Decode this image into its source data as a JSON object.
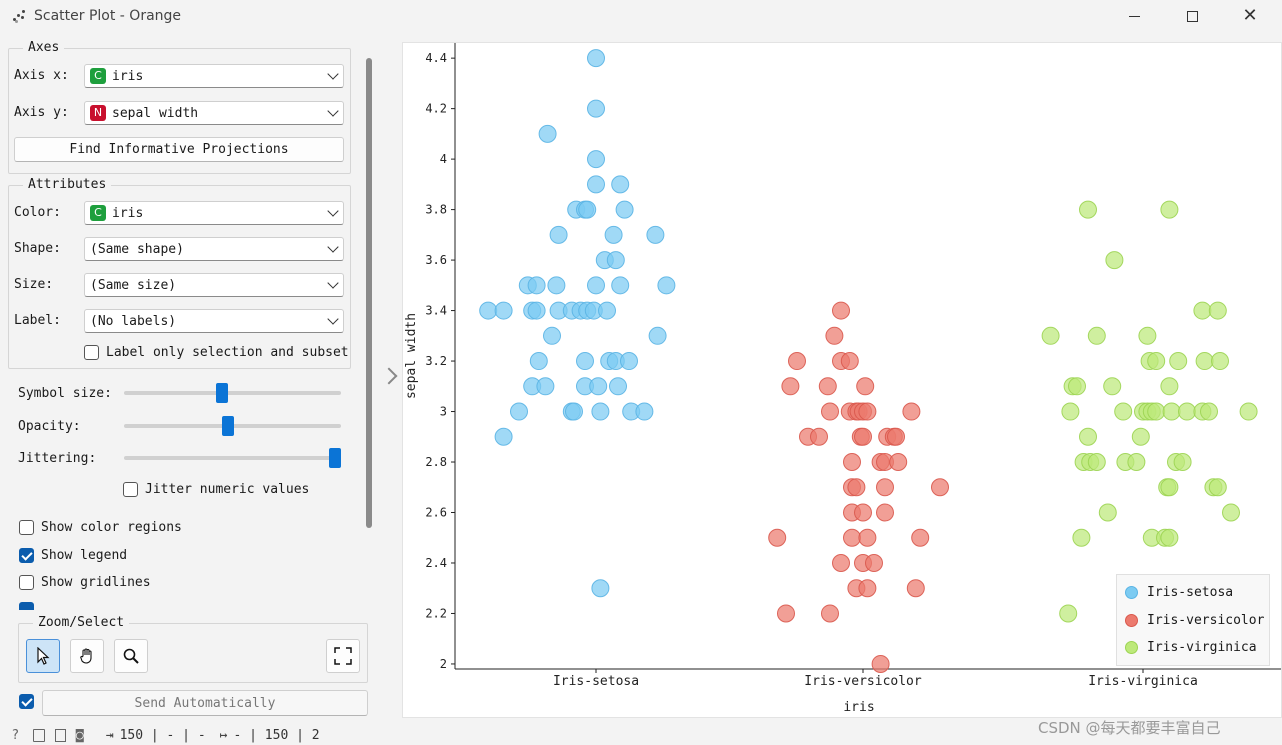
{
  "window": {
    "title": "Scatter Plot - Orange"
  },
  "axes_group": {
    "title": "Axes",
    "x_label": "Axis x:",
    "x_value": "iris",
    "x_badge": "C",
    "y_label": "Axis y:",
    "y_value": "sepal width",
    "y_badge": "N",
    "find_button": "Find Informative Projections"
  },
  "attributes_group": {
    "title": "Attributes",
    "color_label": "Color:",
    "color_value": "iris",
    "color_badge": "C",
    "shape_label": "Shape:",
    "shape_value": "(Same shape)",
    "size_label": "Size:",
    "size_value": "(Same size)",
    "label_label": "Label:",
    "label_value": "(No labels)",
    "label_only_selection": "Label only selection and subset"
  },
  "sliders": {
    "symbol_size_label": "Symbol size:",
    "symbol_size_level": 0.45,
    "opacity_label": "Opacity:",
    "opacity_level": 0.48,
    "jittering_label": "Jittering:",
    "jittering_level": 1.0,
    "jitter_numeric": "Jitter numeric values"
  },
  "checks": {
    "show_color_regions": "Show color regions",
    "show_color_regions_checked": false,
    "show_legend": "Show legend",
    "show_legend_checked": true,
    "show_gridlines": "Show gridlines",
    "show_gridlines_checked": false
  },
  "zoom_select": {
    "title": "Zoom/Select"
  },
  "send": {
    "label": "Send Automatically",
    "checked": true
  },
  "status": {
    "input": "150 | - | -",
    "output": "- | 150 | 2"
  },
  "watermark": "CSDN @每天都要丰富自己",
  "colors": {
    "setosa": "#7ccbf2",
    "versicolor": "#ec7a6e",
    "virginica": "#bde97a",
    "accent": "#0b74d6"
  },
  "chart_data": {
    "type": "scatter",
    "xlabel": "iris",
    "ylabel": "sepal width",
    "categories": [
      "Iris-setosa",
      "Iris-versicolor",
      "Iris-virginica"
    ],
    "ylim": [
      1.98,
      4.46
    ],
    "yticks": [
      "2",
      "2.2",
      "2.4",
      "2.6",
      "2.8",
      "3",
      "3.2",
      "3.4",
      "3.6",
      "3.8",
      "4",
      "4.2",
      "4.4"
    ],
    "legend_placement": "bottom-right",
    "grid": false,
    "series": [
      {
        "name": "Iris-setosa",
        "points": [
          [
            0,
            4.4
          ],
          [
            0,
            4.2
          ],
          [
            -0.22,
            4.1
          ],
          [
            0,
            4.0
          ],
          [
            0,
            3.9
          ],
          [
            0.11,
            3.9
          ],
          [
            -0.09,
            3.8
          ],
          [
            -0.05,
            3.8
          ],
          [
            -0.04,
            3.8
          ],
          [
            0.13,
            3.8
          ],
          [
            -0.17,
            3.7
          ],
          [
            0.08,
            3.7
          ],
          [
            0.27,
            3.7
          ],
          [
            0.04,
            3.6
          ],
          [
            0.09,
            3.6
          ],
          [
            -0.31,
            3.5
          ],
          [
            -0.27,
            3.5
          ],
          [
            -0.18,
            3.5
          ],
          [
            0.0,
            3.5
          ],
          [
            0.11,
            3.5
          ],
          [
            0.32,
            3.5
          ],
          [
            -0.49,
            3.4
          ],
          [
            -0.42,
            3.4
          ],
          [
            -0.29,
            3.4
          ],
          [
            -0.27,
            3.4
          ],
          [
            -0.17,
            3.4
          ],
          [
            -0.11,
            3.4
          ],
          [
            -0.07,
            3.4
          ],
          [
            -0.04,
            3.4
          ],
          [
            -0.01,
            3.4
          ],
          [
            0.05,
            3.4
          ],
          [
            -0.2,
            3.3
          ],
          [
            0.28,
            3.3
          ],
          [
            -0.26,
            3.2
          ],
          [
            -0.05,
            3.2
          ],
          [
            0.06,
            3.2
          ],
          [
            0.09,
            3.2
          ],
          [
            0.15,
            3.2
          ],
          [
            -0.29,
            3.1
          ],
          [
            -0.23,
            3.1
          ],
          [
            -0.05,
            3.1
          ],
          [
            0.01,
            3.1
          ],
          [
            0.1,
            3.1
          ],
          [
            -0.35,
            3.0
          ],
          [
            -0.11,
            3.0
          ],
          [
            -0.1,
            3.0
          ],
          [
            0.02,
            3.0
          ],
          [
            0.16,
            3.0
          ],
          [
            0.22,
            3.0
          ],
          [
            -0.42,
            2.9
          ],
          [
            0.02,
            2.3
          ]
        ]
      },
      {
        "name": "Iris-versicolor",
        "points": [
          [
            -0.1,
            3.4
          ],
          [
            -0.13,
            3.3
          ],
          [
            -0.3,
            3.2
          ],
          [
            -0.1,
            3.2
          ],
          [
            -0.06,
            3.2
          ],
          [
            -0.33,
            3.1
          ],
          [
            -0.16,
            3.1
          ],
          [
            0.01,
            3.1
          ],
          [
            -0.15,
            3.0
          ],
          [
            -0.06,
            3.0
          ],
          [
            -0.03,
            3.0
          ],
          [
            -0.02,
            3.0
          ],
          [
            0.0,
            3.0
          ],
          [
            0.02,
            3.0
          ],
          [
            0.22,
            3.0
          ],
          [
            -0.25,
            2.9
          ],
          [
            -0.2,
            2.9
          ],
          [
            -0.01,
            2.9
          ],
          [
            0.0,
            2.9
          ],
          [
            0.11,
            2.9
          ],
          [
            0.14,
            2.9
          ],
          [
            0.15,
            2.9
          ],
          [
            -0.05,
            2.8
          ],
          [
            0.08,
            2.8
          ],
          [
            0.1,
            2.8
          ],
          [
            0.16,
            2.8
          ],
          [
            -0.05,
            2.7
          ],
          [
            -0.03,
            2.7
          ],
          [
            0.1,
            2.7
          ],
          [
            0.35,
            2.7
          ],
          [
            -0.05,
            2.6
          ],
          [
            0.0,
            2.6
          ],
          [
            0.1,
            2.6
          ],
          [
            -0.39,
            2.5
          ],
          [
            -0.05,
            2.5
          ],
          [
            0.02,
            2.5
          ],
          [
            0.26,
            2.5
          ],
          [
            -0.1,
            2.4
          ],
          [
            0.0,
            2.4
          ],
          [
            0.05,
            2.4
          ],
          [
            -0.03,
            2.3
          ],
          [
            0.02,
            2.3
          ],
          [
            0.24,
            2.3
          ],
          [
            -0.35,
            2.2
          ],
          [
            -0.15,
            2.2
          ],
          [
            0.08,
            2.0
          ]
        ]
      },
      {
        "name": "Iris-virginica",
        "points": [
          [
            -0.25,
            3.8
          ],
          [
            0.12,
            3.8
          ],
          [
            -0.13,
            3.6
          ],
          [
            0.27,
            3.4
          ],
          [
            0.34,
            3.4
          ],
          [
            -0.42,
            3.3
          ],
          [
            -0.21,
            3.3
          ],
          [
            0.02,
            3.3
          ],
          [
            0.03,
            3.2
          ],
          [
            0.06,
            3.2
          ],
          [
            0.16,
            3.2
          ],
          [
            0.28,
            3.2
          ],
          [
            0.35,
            3.2
          ],
          [
            -0.32,
            3.1
          ],
          [
            -0.3,
            3.1
          ],
          [
            -0.14,
            3.1
          ],
          [
            0.12,
            3.1
          ],
          [
            -0.33,
            3.0
          ],
          [
            -0.09,
            3.0
          ],
          [
            0.0,
            3.0
          ],
          [
            0.02,
            3.0
          ],
          [
            0.04,
            3.0
          ],
          [
            0.06,
            3.0
          ],
          [
            0.13,
            3.0
          ],
          [
            0.2,
            3.0
          ],
          [
            0.27,
            3.0
          ],
          [
            0.3,
            3.0
          ],
          [
            0.48,
            3.0
          ],
          [
            -0.25,
            2.9
          ],
          [
            -0.01,
            2.9
          ],
          [
            -0.27,
            2.8
          ],
          [
            -0.24,
            2.8
          ],
          [
            -0.21,
            2.8
          ],
          [
            -0.08,
            2.8
          ],
          [
            -0.03,
            2.8
          ],
          [
            0.15,
            2.8
          ],
          [
            0.18,
            2.8
          ],
          [
            0.11,
            2.7
          ],
          [
            0.12,
            2.7
          ],
          [
            0.32,
            2.7
          ],
          [
            0.34,
            2.7
          ],
          [
            -0.16,
            2.6
          ],
          [
            0.4,
            2.6
          ],
          [
            -0.28,
            2.5
          ],
          [
            0.04,
            2.5
          ],
          [
            0.1,
            2.5
          ],
          [
            0.12,
            2.5
          ],
          [
            -0.34,
            2.2
          ]
        ]
      }
    ]
  }
}
